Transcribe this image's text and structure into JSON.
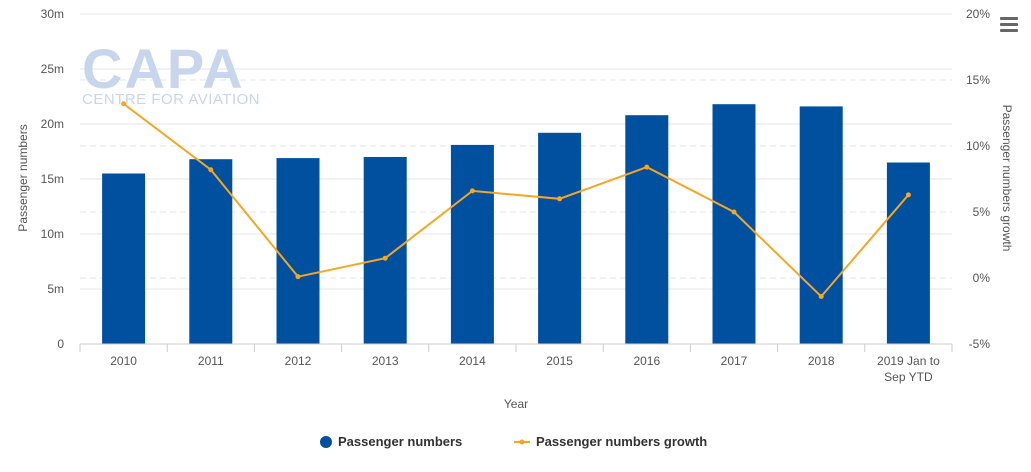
{
  "watermark": {
    "brand": "CAPA",
    "tagline": "CENTRE FOR AVIATION"
  },
  "menu_icon": "hamburger-menu-icon",
  "colors": {
    "bars": "#0050a0",
    "line": "#f5a623",
    "grid": "#e6e6e6"
  },
  "chart_data": {
    "type": "bar",
    "categories": [
      "2010",
      "2011",
      "2012",
      "2013",
      "2014",
      "2015",
      "2016",
      "2017",
      "2018",
      "2019 Jan to Sep YTD"
    ],
    "category_lines": [
      [
        "2010"
      ],
      [
        "2011"
      ],
      [
        "2012"
      ],
      [
        "2013"
      ],
      [
        "2014"
      ],
      [
        "2015"
      ],
      [
        "2016"
      ],
      [
        "2017"
      ],
      [
        "2018"
      ],
      [
        "2019 Jan to",
        "Sep YTD"
      ]
    ],
    "series": [
      {
        "name": "Passenger numbers",
        "type": "bar",
        "axis": "left",
        "values": [
          15.5,
          16.8,
          16.9,
          17.0,
          18.1,
          19.2,
          20.8,
          21.8,
          21.6,
          16.5
        ]
      },
      {
        "name": "Passenger numbers growth",
        "type": "line",
        "axis": "right",
        "values": [
          13.2,
          8.2,
          0.1,
          1.5,
          6.6,
          6.0,
          8.4,
          5.0,
          -1.4,
          6.3
        ]
      }
    ],
    "xlabel": "Year",
    "ylabel": "Passenger numbers",
    "y2label": "Passenger numbers growth",
    "ylim": [
      0,
      30
    ],
    "y2lim": [
      -5,
      20
    ],
    "yticks": [
      "0",
      "5m",
      "10m",
      "15m",
      "20m",
      "25m",
      "30m"
    ],
    "y2ticks": [
      "-5%",
      "0%",
      "5%",
      "10%",
      "15%",
      "20%"
    ],
    "grid": true,
    "legend": "bottom-center"
  }
}
